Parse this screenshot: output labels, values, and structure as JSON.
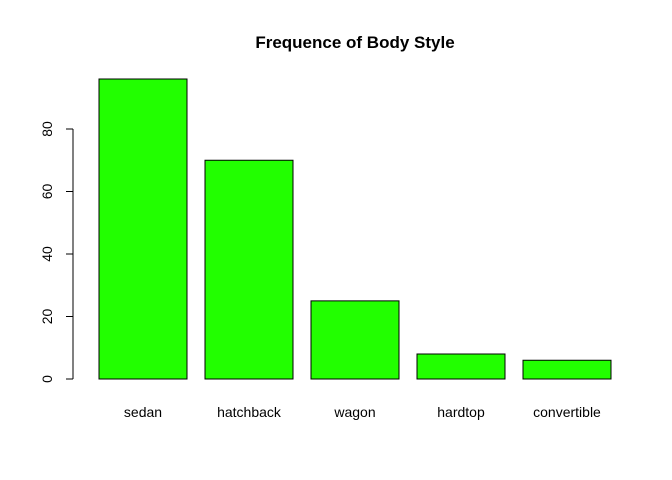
{
  "chart_data": {
    "type": "bar",
    "title": "Frequence of Body Style",
    "xlabel": "",
    "ylabel": "",
    "categories": [
      "sedan",
      "hatchback",
      "wagon",
      "hardtop",
      "convertible"
    ],
    "values": [
      96,
      70,
      25,
      8,
      6
    ],
    "ylim": [
      0,
      100
    ],
    "yticks": [
      "0",
      "20",
      "40",
      "60",
      "80"
    ],
    "grid": false,
    "legend": "none",
    "bar_color": "#22ff00",
    "bar_border_color": "#000000"
  }
}
